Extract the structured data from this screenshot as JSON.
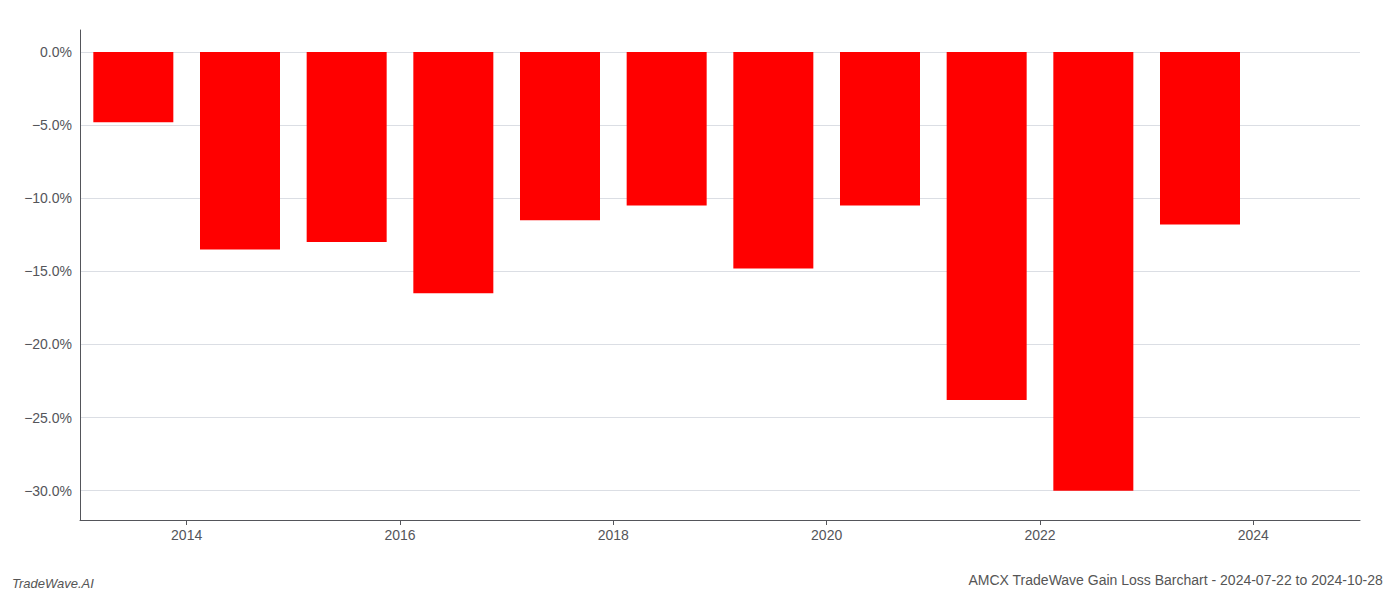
{
  "chart_data": {
    "type": "bar",
    "title": "AMCX TradeWave Gain Loss Barchart - 2024-07-22 to 2024-10-28",
    "annotations": [
      "TradeWave.AI"
    ],
    "x": [
      2013.5,
      2014.5,
      2015.5,
      2016.5,
      2017.5,
      2018.5,
      2019.5,
      2020.5,
      2021.5,
      2022.5,
      2023.5
    ],
    "values": [
      -4.8,
      -13.5,
      -13.0,
      -16.5,
      -11.5,
      -10.5,
      -14.8,
      -10.5,
      -23.8,
      -30.0,
      -11.8
    ],
    "color": "#ff0000",
    "xlim": [
      2013.0,
      2025.0
    ],
    "xticks": [
      2014,
      2016,
      2018,
      2020,
      2022,
      2024
    ],
    "ylim": [
      -32,
      1.5
    ],
    "yticks": [
      {
        "value": 0.0,
        "label": "0.0%"
      },
      {
        "value": -5.0,
        "label": "−5.0%"
      },
      {
        "value": -10.0,
        "label": "−10.0%"
      },
      {
        "value": -15.0,
        "label": "−15.0%"
      },
      {
        "value": -20.0,
        "label": "−20.0%"
      },
      {
        "value": -25.0,
        "label": "−25.0%"
      },
      {
        "value": -30.0,
        "label": "−30.0%"
      }
    ],
    "grid": true
  }
}
